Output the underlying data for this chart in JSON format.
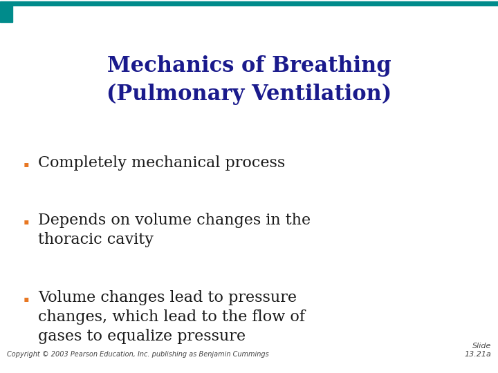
{
  "title_line1": "Mechanics of Breathing",
  "title_line2": "(Pulmonary Ventilation)",
  "title_color": "#1a1a8c",
  "bullet_color": "#e87722",
  "text_color": "#1a1a1a",
  "background_color": "#ffffff",
  "top_bar_color": "#008b8b",
  "bullet_points": [
    "Completely mechanical process",
    "Depends on volume changes in the\nthoracic cavity",
    "Volume changes lead to pressure\nchanges, which lead to the flow of\ngases to equalize pressure"
  ],
  "footer_left": "Copyright © 2003 Pearson Education, Inc. publishing as Benjamin Cummings",
  "footer_right": "Slide\n13.21a",
  "footer_color": "#444444",
  "title_fontsize": 22,
  "bullet_fontsize": 16,
  "footer_fontsize": 7
}
